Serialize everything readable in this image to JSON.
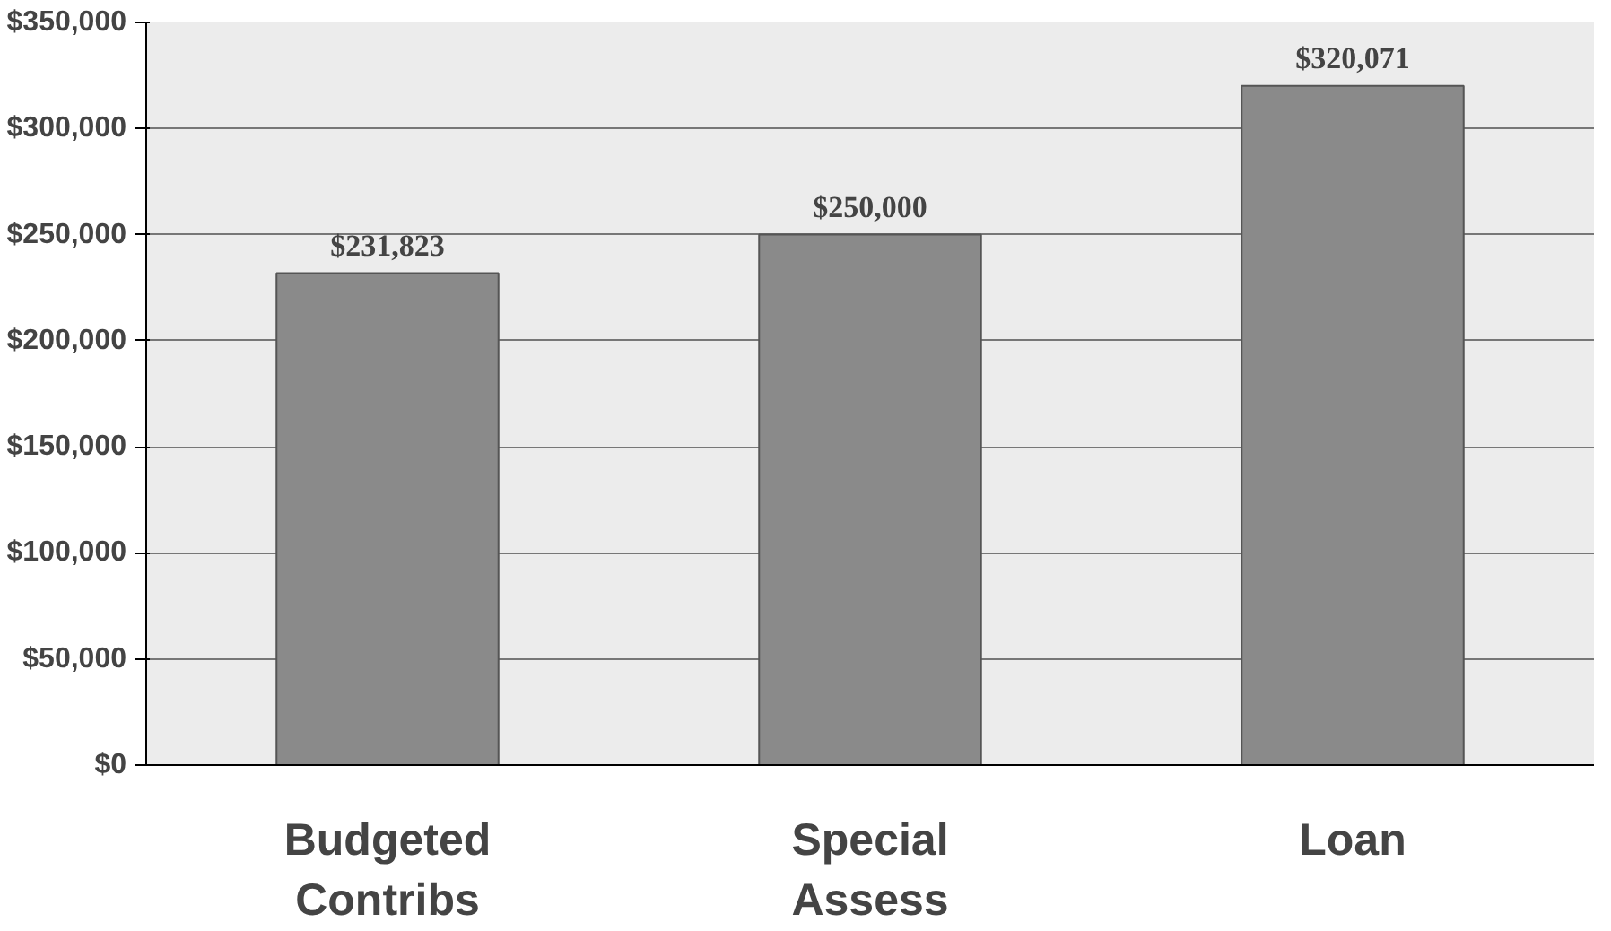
{
  "chart_data": {
    "type": "bar",
    "categories": [
      "Budgeted Contribs",
      "Special Assess",
      "Loan"
    ],
    "values": [
      231823,
      250000,
      320071
    ],
    "color": "#8a8a8a",
    "value_labels": [
      "$231,823",
      "$250,000",
      "$320,071"
    ],
    "ylim": [
      0,
      350000
    ],
    "yticks": [
      {
        "value": 0,
        "label": "$0"
      },
      {
        "value": 50000,
        "label": "$50,000"
      },
      {
        "value": 100000,
        "label": "$100,000"
      },
      {
        "value": 150000,
        "label": "$150,000"
      },
      {
        "value": 200000,
        "label": "$200,000"
      },
      {
        "value": 250000,
        "label": "$250,000"
      },
      {
        "value": 300000,
        "label": "$300,000"
      },
      {
        "value": 350000,
        "label": "$350,000"
      }
    ],
    "grid": "y"
  }
}
